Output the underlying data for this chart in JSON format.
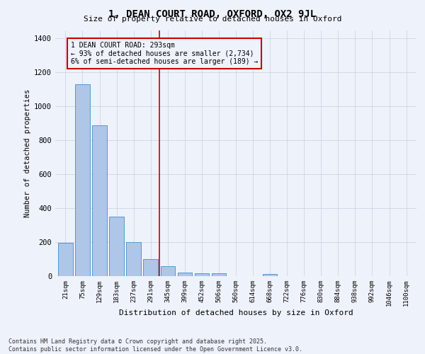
{
  "title1": "1, DEAN COURT ROAD, OXFORD, OX2 9JL",
  "title2": "Size of property relative to detached houses in Oxford",
  "xlabel": "Distribution of detached houses by size in Oxford",
  "ylabel": "Number of detached properties",
  "categories": [
    "21sqm",
    "75sqm",
    "129sqm",
    "183sqm",
    "237sqm",
    "291sqm",
    "345sqm",
    "399sqm",
    "452sqm",
    "506sqm",
    "560sqm",
    "614sqm",
    "668sqm",
    "722sqm",
    "776sqm",
    "830sqm",
    "884sqm",
    "938sqm",
    "992sqm",
    "1046sqm",
    "1100sqm"
  ],
  "values": [
    195,
    1130,
    890,
    350,
    200,
    100,
    58,
    22,
    18,
    15,
    0,
    0,
    12,
    0,
    0,
    0,
    0,
    0,
    0,
    0,
    0
  ],
  "bar_color": "#aec6e8",
  "bar_edge_color": "#5599cc",
  "vline_x_idx": 5.5,
  "vline_color": "#cc0000",
  "annotation_text": "1 DEAN COURT ROAD: 293sqm\n← 93% of detached houses are smaller (2,734)\n6% of semi-detached houses are larger (189) →",
  "annotation_box_color": "#cc0000",
  "ylim": [
    0,
    1450
  ],
  "yticks": [
    0,
    200,
    400,
    600,
    800,
    1000,
    1200,
    1400
  ],
  "footer1": "Contains HM Land Registry data © Crown copyright and database right 2025.",
  "footer2": "Contains public sector information licensed under the Open Government Licence v3.0.",
  "bg_color": "#eef2fb",
  "grid_color": "#c8cfe0"
}
